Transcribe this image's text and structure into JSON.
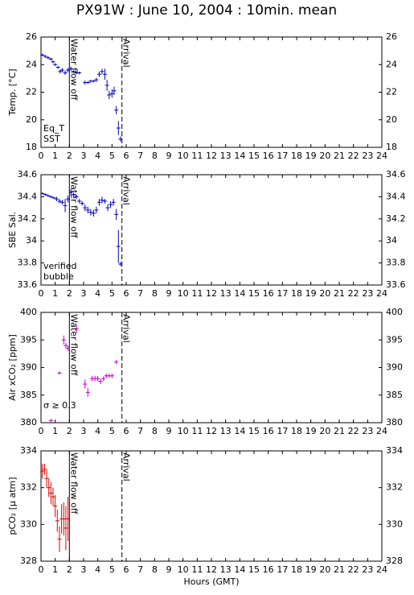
{
  "title": "PX91W : June 10, 2004 : 10min. mean",
  "chart_data": [
    {
      "type": "scatter",
      "ylabel": "Temp. [°C]",
      "xlim": [
        0,
        24
      ],
      "xticks": [
        0,
        1,
        2,
        3,
        4,
        5,
        6,
        7,
        8,
        9,
        10,
        11,
        12,
        13,
        14,
        15,
        16,
        17,
        18,
        19,
        20,
        21,
        22,
        23,
        24
      ],
      "ylim": [
        18,
        26
      ],
      "yticks": [
        18,
        20,
        22,
        24,
        26
      ],
      "annotations": [
        {
          "x": 2,
          "label": "Water flow off",
          "style": "solid"
        },
        {
          "x": 5.7,
          "label": "Arrival",
          "style": "dashed"
        }
      ],
      "series": [
        {
          "name": "Eq_T",
          "color": "#e00000",
          "x": [],
          "values": [],
          "errors": []
        },
        {
          "name": "SST",
          "color": "#0000c0",
          "x": [
            0.1,
            0.3,
            0.5,
            0.7,
            0.85,
            1.0,
            1.2,
            1.35,
            1.5,
            1.7,
            1.9,
            2.1,
            2.3,
            2.5,
            2.7,
            3.1,
            3.3,
            3.5,
            3.7,
            3.9,
            4.1,
            4.3,
            4.5,
            4.65,
            4.8,
            5.0,
            5.15,
            5.3,
            5.45,
            5.6
          ],
          "values": [
            24.7,
            24.6,
            24.5,
            24.4,
            24.2,
            24.0,
            23.8,
            23.5,
            23.6,
            23.4,
            23.6,
            23.7,
            23.5,
            23.4,
            23.4,
            22.7,
            22.7,
            22.8,
            22.8,
            22.9,
            23.3,
            23.5,
            23.3,
            22.5,
            21.8,
            21.9,
            22.1,
            20.7,
            19.4,
            18.6
          ],
          "errors": [
            0.1,
            0.1,
            0.1,
            0.1,
            0.1,
            0.1,
            0.1,
            0.15,
            0.15,
            0.15,
            0.15,
            0.15,
            0.1,
            0.1,
            0.1,
            0.15,
            0.1,
            0.1,
            0.1,
            0.15,
            0.2,
            0.2,
            0.4,
            0.4,
            0.3,
            0.3,
            0.3,
            0.3,
            0.5,
            0.2
          ]
        }
      ]
    },
    {
      "type": "scatter",
      "ylabel": "SBE Sal.",
      "xlim": [
        0,
        24
      ],
      "xticks": [
        0,
        1,
        2,
        3,
        4,
        5,
        6,
        7,
        8,
        9,
        10,
        11,
        12,
        13,
        14,
        15,
        16,
        17,
        18,
        19,
        20,
        21,
        22,
        23,
        24
      ],
      "ylim": [
        33.6,
        34.6
      ],
      "yticks": [
        33.6,
        33.8,
        34,
        34.2,
        34.4,
        34.6
      ],
      "annotations": [
        {
          "x": 2,
          "label": "Water flow off",
          "style": "solid"
        },
        {
          "x": 5.7,
          "label": "Arrival",
          "style": "dashed"
        }
      ],
      "series": [
        {
          "name": "verified",
          "color": "#0000c0",
          "x": [
            0.1,
            0.3,
            0.5,
            0.7,
            0.9,
            1.1,
            1.3,
            1.5,
            1.7,
            1.9,
            2.1,
            2.3,
            2.5,
            2.7,
            2.9,
            3.1,
            3.3,
            3.5,
            3.7,
            3.9,
            4.1,
            4.3,
            4.5,
            4.7,
            4.9,
            5.1,
            5.3,
            5.45,
            5.6
          ],
          "values": [
            34.43,
            34.42,
            34.41,
            34.4,
            34.39,
            34.38,
            34.36,
            34.35,
            34.32,
            34.38,
            34.44,
            34.42,
            34.4,
            34.36,
            34.34,
            34.3,
            34.28,
            34.26,
            34.25,
            34.28,
            34.35,
            34.37,
            34.36,
            34.3,
            34.33,
            34.35,
            34.24,
            33.95,
            33.79
          ],
          "errors": [
            0.01,
            0.01,
            0.01,
            0.01,
            0.01,
            0.02,
            0.02,
            0.02,
            0.06,
            0.03,
            0.03,
            0.02,
            0.02,
            0.02,
            0.02,
            0.03,
            0.03,
            0.03,
            0.03,
            0.03,
            0.03,
            0.03,
            0.02,
            0.03,
            0.03,
            0.03,
            0.05,
            0.15,
            0.02
          ]
        },
        {
          "name": "bubble",
          "color": "#c000c0",
          "x": [],
          "values": [],
          "errors": []
        }
      ]
    },
    {
      "type": "scatter",
      "ylabel": "Air xCO₂ [ppm]",
      "xlim": [
        0,
        24
      ],
      "xticks": [
        0,
        1,
        2,
        3,
        4,
        5,
        6,
        7,
        8,
        9,
        10,
        11,
        12,
        13,
        14,
        15,
        16,
        17,
        18,
        19,
        20,
        21,
        22,
        23,
        24
      ],
      "ylim": [
        380,
        400
      ],
      "yticks": [
        380,
        385,
        390,
        395,
        400
      ],
      "note": "σ ≥ 0.3",
      "note_color": "#c000c0",
      "annotations": [
        {
          "x": 2,
          "label": "Water flow off",
          "style": "solid"
        },
        {
          "x": 5.7,
          "label": "Arrival",
          "style": "dashed"
        }
      ],
      "series": [
        {
          "color": "#c000c0",
          "x": [
            0.7,
            1.3,
            1.6,
            1.75,
            1.9,
            2.5,
            3.1,
            3.3,
            3.6,
            3.8,
            4.0,
            4.2,
            4.4,
            4.6,
            4.8,
            5.0,
            5.3
          ],
          "values": [
            380.4,
            389,
            395,
            394,
            393.5,
            397,
            387,
            385.5,
            388,
            388,
            388,
            387.5,
            388,
            388.5,
            388.5,
            388.5,
            391
          ],
          "errors": [
            0.3,
            0.3,
            0.8,
            0.5,
            0.5,
            0.8,
            0.8,
            0.8,
            0.5,
            0.5,
            0.5,
            0.5,
            0.4,
            0.4,
            0.4,
            0.4,
            0.4
          ]
        }
      ]
    },
    {
      "type": "scatter",
      "ylabel": "pCO₂ [µ atm]",
      "xlabel": "Hours (GMT)",
      "xlim": [
        0,
        24
      ],
      "xticks": [
        0,
        1,
        2,
        3,
        4,
        5,
        6,
        7,
        8,
        9,
        10,
        11,
        12,
        13,
        14,
        15,
        16,
        17,
        18,
        19,
        20,
        21,
        22,
        23,
        24
      ],
      "ylim": [
        328,
        334
      ],
      "yticks": [
        328,
        330,
        332,
        334
      ],
      "annotations": [
        {
          "x": 2,
          "label": "Water flow off",
          "style": "solid"
        },
        {
          "x": 5.7,
          "label": "Arrival",
          "style": "dashed"
        }
      ],
      "series": [
        {
          "color": "#e00000",
          "x": [
            0.1,
            0.25,
            0.4,
            0.55,
            0.7,
            0.85,
            1.0,
            1.15,
            1.3,
            1.45,
            1.6,
            1.75,
            1.9
          ],
          "values": [
            332.9,
            333.0,
            332.5,
            332.0,
            331.7,
            331.5,
            331.0,
            330.2,
            329.2,
            330.3,
            330.3,
            329.8,
            330.3
          ],
          "errors": [
            0.4,
            0.3,
            0.5,
            0.5,
            0.6,
            0.5,
            0.6,
            0.6,
            0.7,
            0.8,
            0.9,
            1.2,
            1.2
          ]
        }
      ]
    }
  ]
}
